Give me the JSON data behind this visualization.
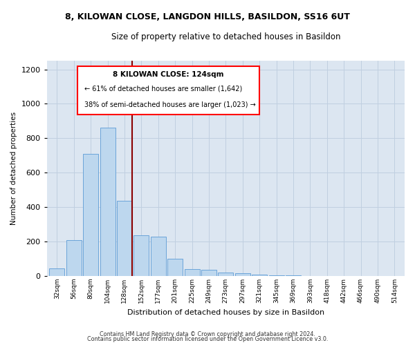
{
  "title1": "8, KILOWAN CLOSE, LANGDON HILLS, BASILDON, SS16 6UT",
  "title2": "Size of property relative to detached houses in Basildon",
  "xlabel": "Distribution of detached houses by size in Basildon",
  "ylabel": "Number of detached properties",
  "categories": [
    "32sqm",
    "56sqm",
    "80sqm",
    "104sqm",
    "128sqm",
    "152sqm",
    "177sqm",
    "201sqm",
    "225sqm",
    "249sqm",
    "273sqm",
    "297sqm",
    "321sqm",
    "345sqm",
    "369sqm",
    "393sqm",
    "418sqm",
    "442sqm",
    "466sqm",
    "490sqm",
    "514sqm"
  ],
  "values": [
    45,
    210,
    710,
    860,
    435,
    235,
    230,
    100,
    40,
    35,
    20,
    15,
    10,
    5,
    3,
    2,
    1,
    0,
    0,
    0,
    0
  ],
  "bar_color": "#bdd7ee",
  "bar_edge_color": "#5b9bd5",
  "annotation_title": "8 KILOWAN CLOSE: 124sqm",
  "annotation_line1": "← 61% of detached houses are smaller (1,642)",
  "annotation_line2": "38% of semi-detached houses are larger (1,023) →",
  "footer1": "Contains HM Land Registry data © Crown copyright and database right 2024.",
  "footer2": "Contains public sector information licensed under the Open Government Licence v3.0.",
  "ylim": [
    0,
    1250
  ],
  "yticks": [
    0,
    200,
    400,
    600,
    800,
    1000,
    1200
  ],
  "background_color": "#ffffff",
  "plot_bg_color": "#dce6f1",
  "grid_color": "#c0cfe0"
}
